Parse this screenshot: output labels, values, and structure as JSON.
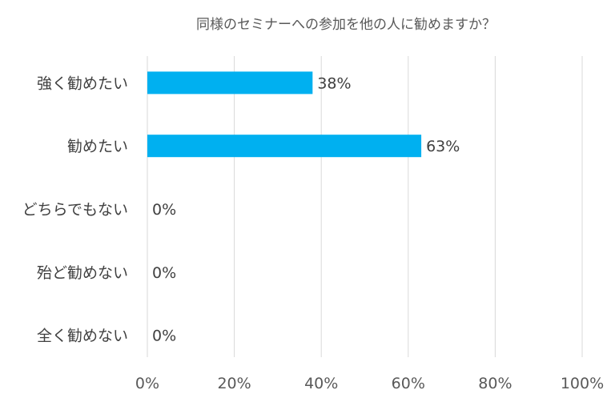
{
  "chart_data": {
    "type": "bar",
    "orientation": "horizontal",
    "title": "同様のセミナーへの参加を他の人に勧めますか？",
    "categories": [
      "強く勧めたい",
      "勧めたい",
      "どちらでもない",
      "殆ど勧めない",
      "全く勧めない"
    ],
    "values": [
      38,
      63,
      0,
      0,
      0
    ],
    "data_labels": [
      "38%",
      "63%",
      "0%",
      "0%",
      "0%"
    ],
    "xlim": [
      0,
      100
    ],
    "x_ticks": [
      0,
      20,
      40,
      60,
      80,
      100
    ],
    "x_tick_labels": [
      "0%",
      "20%",
      "40%",
      "60%",
      "80%",
      "100%"
    ],
    "grid": "vertical",
    "legend": "none",
    "bar_color": "#00b0f0"
  }
}
